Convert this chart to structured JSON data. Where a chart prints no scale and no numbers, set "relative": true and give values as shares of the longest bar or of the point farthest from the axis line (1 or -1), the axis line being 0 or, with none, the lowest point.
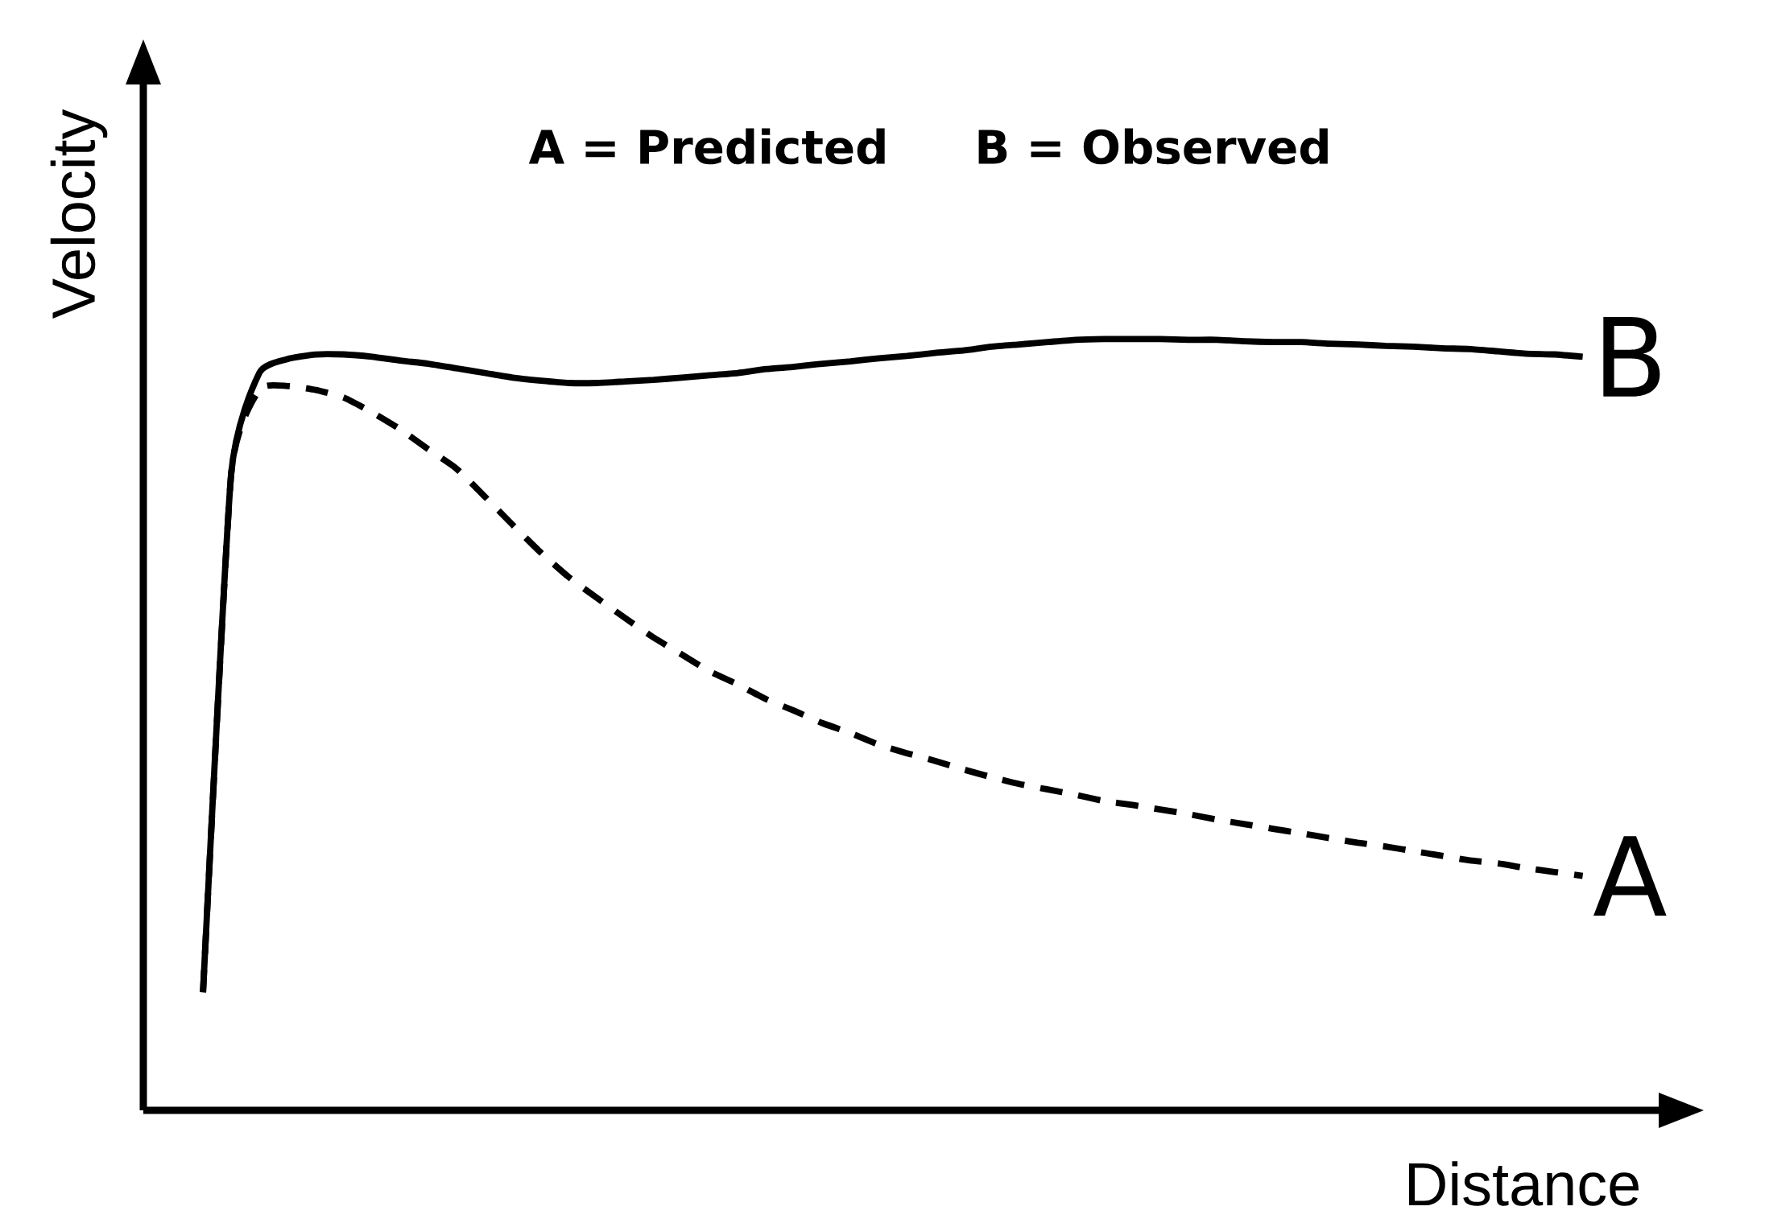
{
  "chart_data": {
    "type": "line",
    "relative": true,
    "xlabel": "Distance",
    "ylabel": "Velocity",
    "annotations": [
      "A = Predicted",
      "B = Observed"
    ],
    "categories": [
      null,
      null,
      null,
      null,
      null,
      null,
      null,
      null,
      null,
      null,
      null,
      null,
      null,
      null,
      null,
      null,
      null,
      null,
      null,
      null,
      null,
      null,
      null,
      null,
      null,
      null,
      null,
      null,
      null,
      null,
      null,
      null,
      null,
      null,
      null,
      null,
      null,
      null,
      null,
      null,
      null,
      null,
      null,
      null,
      null,
      null,
      null,
      null,
      null,
      null
    ],
    "series": [
      {
        "name": "B",
        "color": "#000000",
        "line_style": "solid",
        "values": [
          0.153,
          0.825,
          0.956,
          0.974,
          0.98,
          0.98,
          0.977,
          0.972,
          0.968,
          0.962,
          0.956,
          0.95,
          0.946,
          0.943,
          0.943,
          0.945,
          0.947,
          0.95,
          0.953,
          0.956,
          0.961,
          0.964,
          0.968,
          0.971,
          0.975,
          0.978,
          0.982,
          0.985,
          0.99,
          0.993,
          0.996,
          0.999,
          1.0,
          1.0,
          1.0,
          0.999,
          0.999,
          0.997,
          0.996,
          0.996,
          0.994,
          0.993,
          0.991,
          0.99,
          0.988,
          0.987,
          0.984,
          0.981,
          0.98,
          0.977
        ]
      },
      {
        "name": "A",
        "color": "#000000",
        "line_style": "dashed",
        "values": [
          0.153,
          0.825,
          0.934,
          0.939,
          0.934,
          0.924,
          0.905,
          0.883,
          0.857,
          0.832,
          0.796,
          0.759,
          0.723,
          0.691,
          0.664,
          0.638,
          0.613,
          0.591,
          0.569,
          0.552,
          0.533,
          0.518,
          0.502,
          0.489,
          0.474,
          0.463,
          0.453,
          0.442,
          0.432,
          0.423,
          0.416,
          0.409,
          0.401,
          0.396,
          0.39,
          0.384,
          0.377,
          0.371,
          0.365,
          0.359,
          0.353,
          0.347,
          0.342,
          0.336,
          0.33,
          0.324,
          0.32,
          0.314,
          0.309,
          0.304
        ]
      }
    ]
  }
}
